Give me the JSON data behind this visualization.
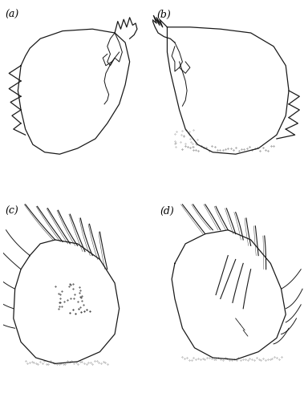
{
  "panels": [
    "(a)",
    "(b)",
    "(c)",
    "(d)"
  ],
  "background_color": "#ffffff",
  "line_color": "#1a1a1a",
  "line_width": 0.9,
  "figsize": [
    3.79,
    5.0
  ],
  "dpi": 100,
  "panel_label_fontsize": 9
}
